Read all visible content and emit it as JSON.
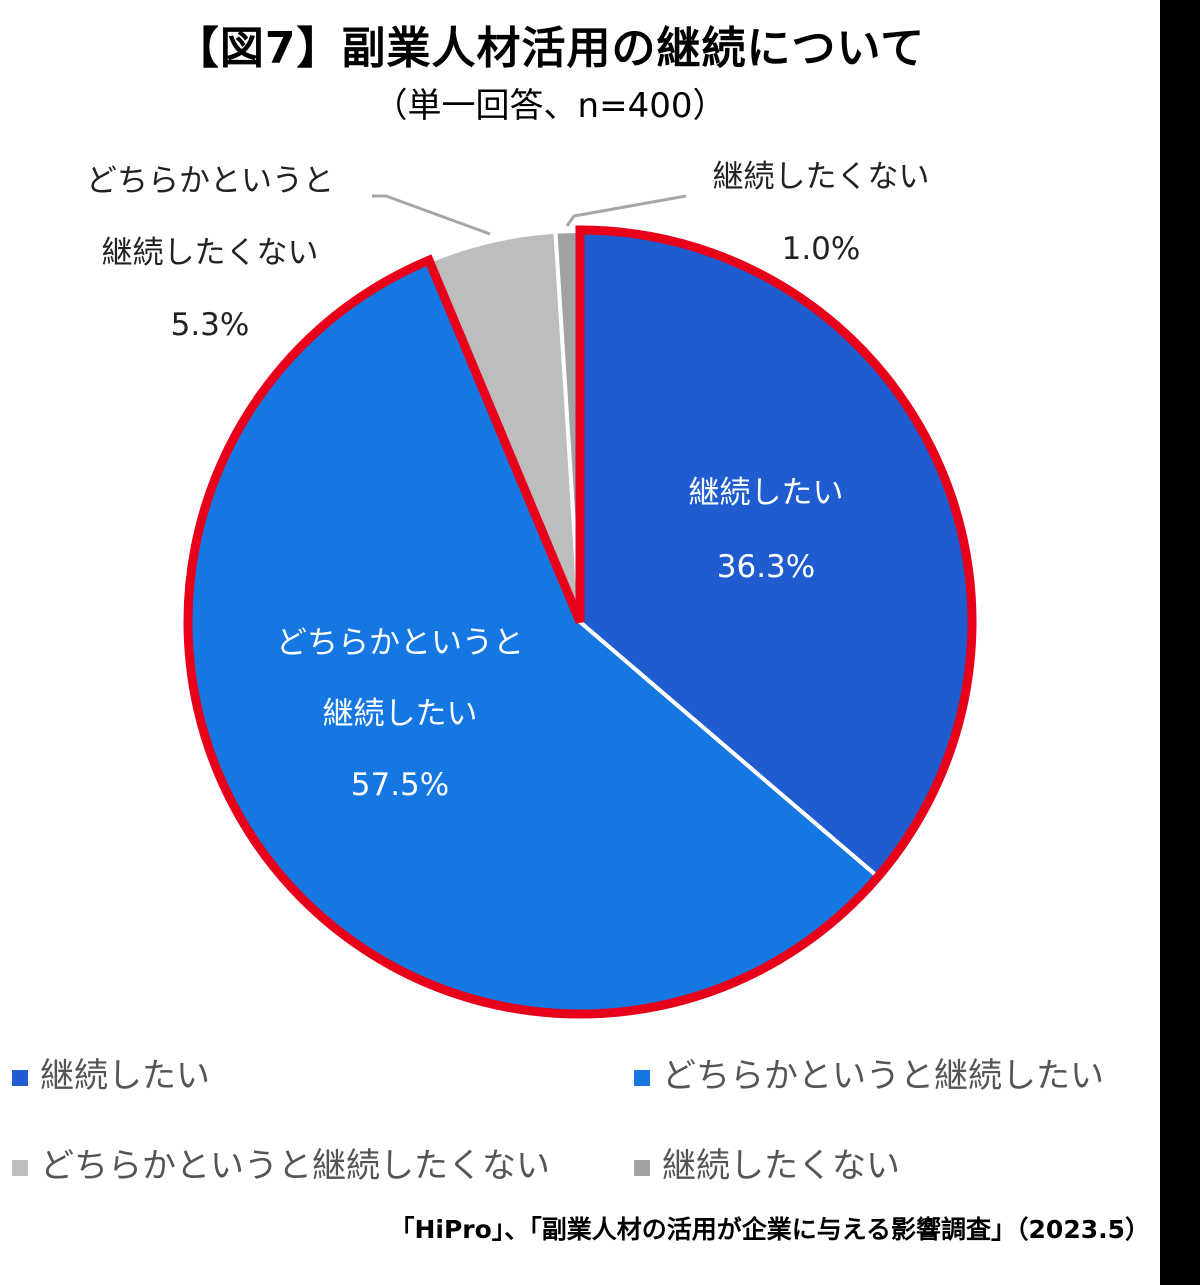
{
  "title": "【図7】副業人材活用の継続について",
  "subtitle": "（単一回答、n=400）",
  "source": "「HiPro」、「副業人材の活用が企業に与える影響調査」（2023.5）",
  "colors": {
    "keizoku_shitai": "#1E5CD0",
    "dochiraka_shitai": "#1477E2",
    "dochiraka_shitakunai": "#BDBDBD",
    "shitakunai": "#A2A2A2",
    "highlight_outline": "#E8001A"
  },
  "labels": {
    "s1": {
      "line1": "継続したい",
      "value": "36.3%"
    },
    "s2": {
      "line1": "どちらかというと",
      "line2": "継続したい",
      "value": "57.5%"
    },
    "s3": {
      "line1": "どちらかというと",
      "line2": "継続したくない",
      "value": "5.3%"
    },
    "s4": {
      "line1": "継続したくない",
      "value": "1.0%"
    }
  },
  "legend": [
    {
      "label": "継続したい"
    },
    {
      "label": "どちらかというと継続したい"
    },
    {
      "label": "どちらかというと継続したくない"
    },
    {
      "label": "継続したくない"
    }
  ],
  "chart_data": {
    "type": "pie",
    "title": "【図7】副業人材活用の継続について",
    "subtitle": "（単一回答、n=400）",
    "categories": [
      "継続したい",
      "どちらかというと継続したい",
      "どちらかというと継続したくない",
      "継続したくない"
    ],
    "values": [
      36.3,
      57.5,
      5.3,
      1.0
    ],
    "unit": "%",
    "start_angle": "12 o'clock, clockwise",
    "highlight": "継続したい + どちらかというと継続したい outlined in red",
    "legend_position": "bottom",
    "source": "「HiPro」、「副業人材の活用が企業に与える影響調査」（2023.5）"
  }
}
